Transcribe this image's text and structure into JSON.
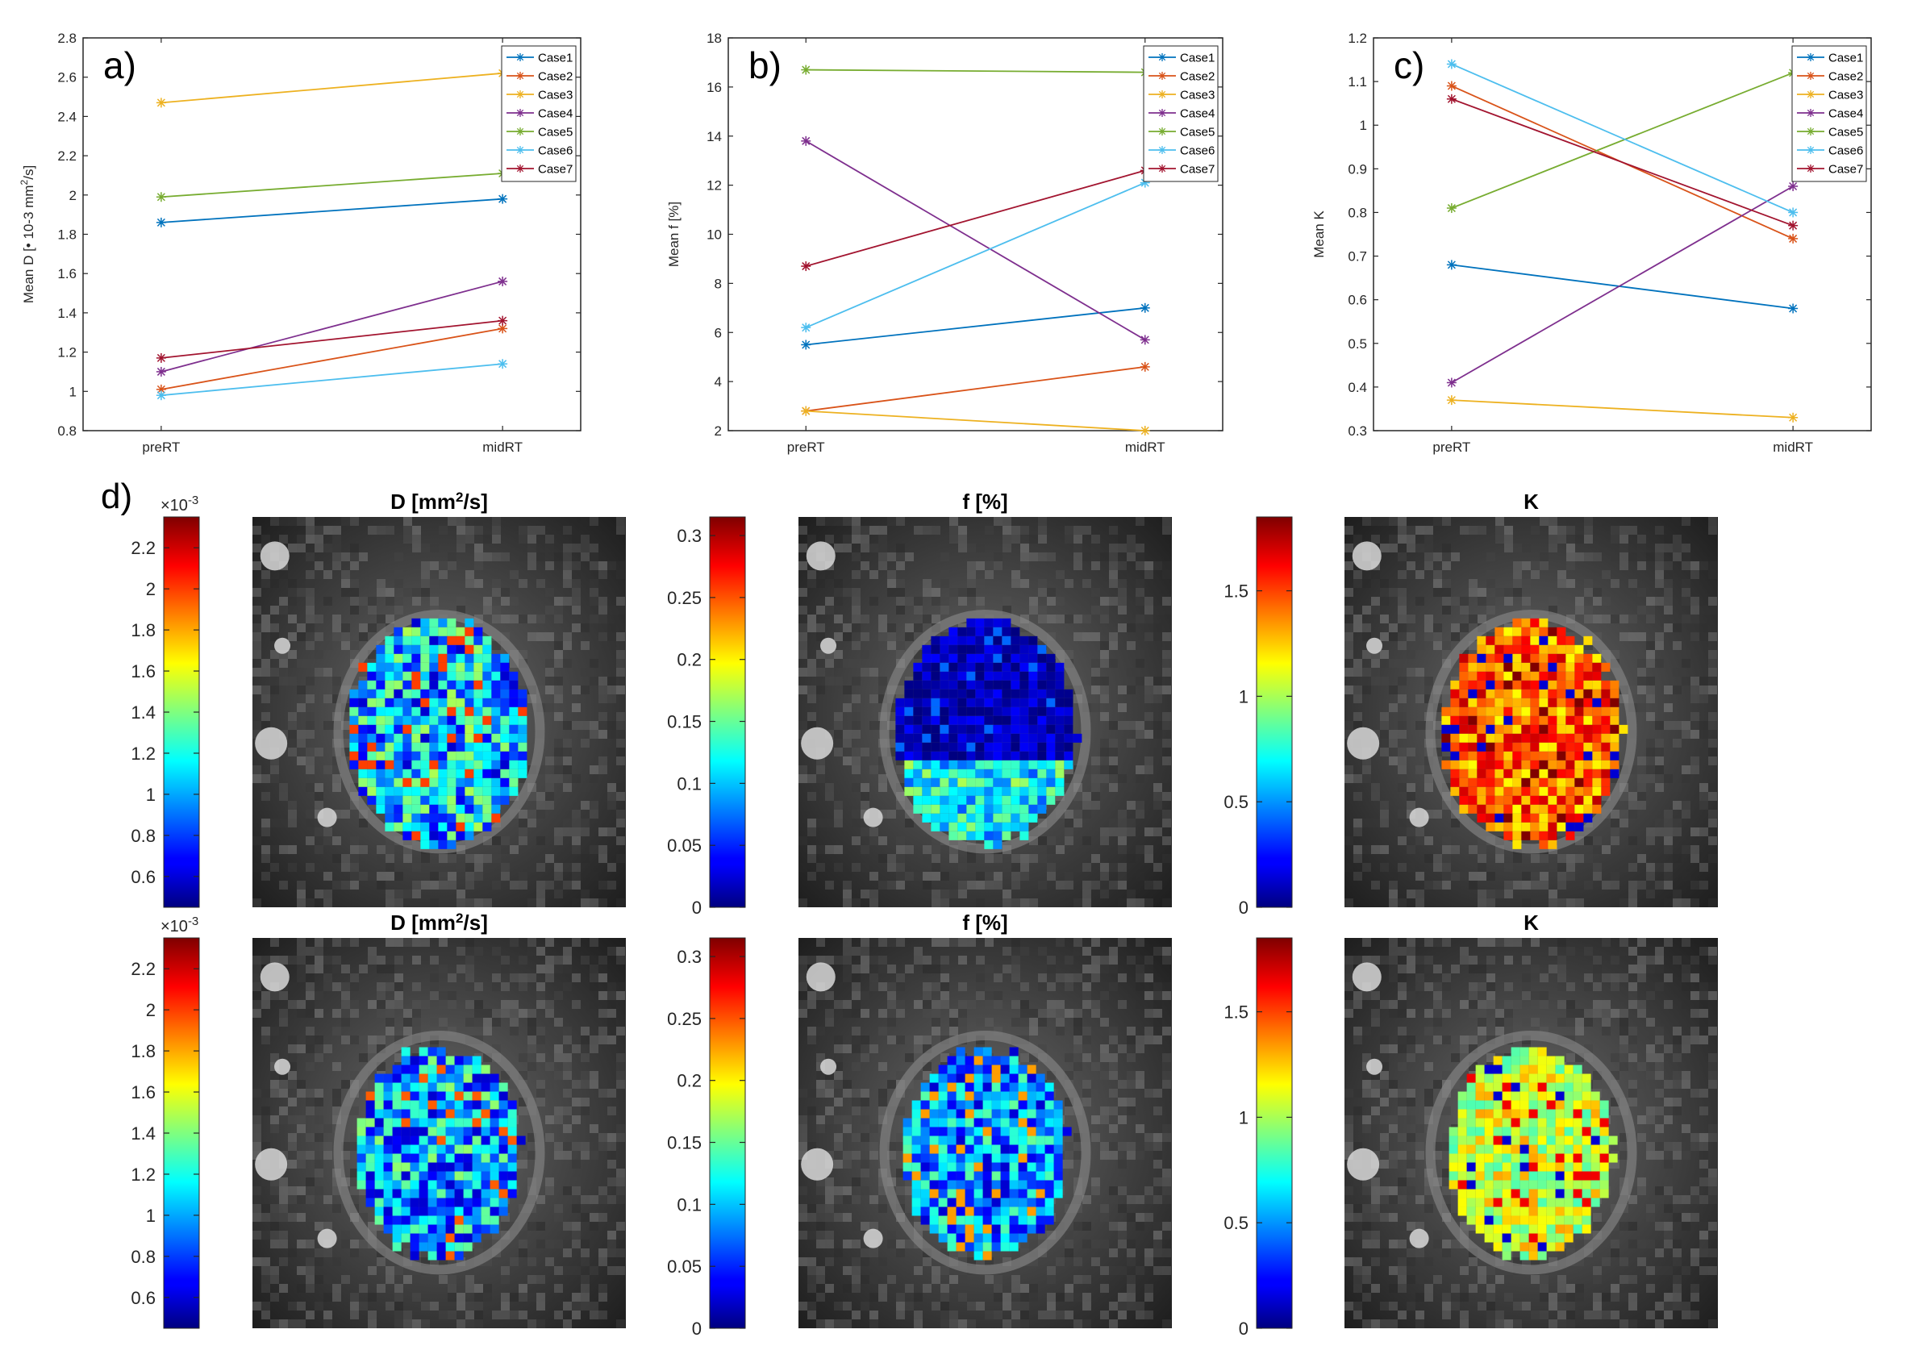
{
  "colors": {
    "Case1": "#0072BD",
    "Case2": "#D95319",
    "Case3": "#EDB120",
    "Case4": "#7E2F8E",
    "Case5": "#77AC30",
    "Case6": "#4DBEEE",
    "Case7": "#A2142F"
  },
  "chart_data": [
    {
      "type": "line",
      "panel_label": "a)",
      "ylabel": "Mean D [• 10-3 mm²/s]",
      "categories": [
        "preRT",
        "midRT"
      ],
      "ylim": [
        0.8,
        2.8
      ],
      "yticks": [
        "0.8",
        "1",
        "1.2",
        "1.4",
        "1.6",
        "1.8",
        "2",
        "2.2",
        "2.4",
        "2.6",
        "2.8"
      ],
      "series": [
        {
          "name": "Case1",
          "values": [
            1.86,
            1.98
          ]
        },
        {
          "name": "Case2",
          "values": [
            1.01,
            1.32
          ]
        },
        {
          "name": "Case3",
          "values": [
            2.47,
            2.62
          ]
        },
        {
          "name": "Case4",
          "values": [
            1.1,
            1.56
          ]
        },
        {
          "name": "Case5",
          "values": [
            1.99,
            2.11
          ]
        },
        {
          "name": "Case6",
          "values": [
            0.98,
            1.14
          ]
        },
        {
          "name": "Case7",
          "values": [
            1.17,
            1.36
          ]
        }
      ]
    },
    {
      "type": "line",
      "panel_label": "b)",
      "ylabel": "Mean f [%]",
      "categories": [
        "preRT",
        "midRT"
      ],
      "ylim": [
        2,
        18
      ],
      "yticks": [
        "2",
        "4",
        "6",
        "8",
        "10",
        "12",
        "14",
        "16",
        "18"
      ],
      "series": [
        {
          "name": "Case1",
          "values": [
            5.5,
            7.0
          ]
        },
        {
          "name": "Case2",
          "values": [
            2.8,
            4.6
          ]
        },
        {
          "name": "Case3",
          "values": [
            2.8,
            2.0
          ]
        },
        {
          "name": "Case4",
          "values": [
            13.8,
            5.7
          ]
        },
        {
          "name": "Case5",
          "values": [
            16.7,
            16.6
          ]
        },
        {
          "name": "Case6",
          "values": [
            6.2,
            12.1
          ]
        },
        {
          "name": "Case7",
          "values": [
            8.7,
            12.6
          ]
        }
      ]
    },
    {
      "type": "line",
      "panel_label": "c)",
      "ylabel": "Mean K",
      "categories": [
        "preRT",
        "midRT"
      ],
      "ylim": [
        0.3,
        1.2
      ],
      "yticks": [
        "0.3",
        "0.4",
        "0.5",
        "0.6",
        "0.7",
        "0.8",
        "0.9",
        "1",
        "1.1",
        "1.2"
      ],
      "series": [
        {
          "name": "Case1",
          "values": [
            0.68,
            0.58
          ]
        },
        {
          "name": "Case2",
          "values": [
            1.09,
            0.74
          ]
        },
        {
          "name": "Case3",
          "values": [
            0.37,
            0.33
          ]
        },
        {
          "name": "Case4",
          "values": [
            0.41,
            0.86
          ]
        },
        {
          "name": "Case5",
          "values": [
            0.81,
            1.12
          ]
        },
        {
          "name": "Case6",
          "values": [
            1.14,
            0.8
          ]
        },
        {
          "name": "Case7",
          "values": [
            1.06,
            0.77
          ]
        }
      ]
    }
  ],
  "maps": {
    "panel_label": "d)",
    "rows": [
      {
        "images": [
          {
            "title": "D [mm²/s]",
            "title_main": "D [mm",
            "title_sup": "2",
            "title_rest": "/s]",
            "colorbar_ticks": [
              "0.6",
              "0.8",
              "1",
              "1.2",
              "1.4",
              "1.6",
              "1.8",
              "2",
              "2.2"
            ],
            "colorbar_range": [
              0.45,
              2.35
            ],
            "colorbar_exponent": "×10",
            "colorbar_exponent_power": "-3"
          },
          {
            "title": "f [%]",
            "title_main": "f [%]",
            "title_sup": "",
            "title_rest": "",
            "colorbar_ticks": [
              "0",
              "0.05",
              "0.1",
              "0.15",
              "0.2",
              "0.25",
              "0.3"
            ],
            "colorbar_range": [
              0,
              0.315
            ],
            "colorbar_exponent": "",
            "colorbar_exponent_power": ""
          },
          {
            "title": "K",
            "title_main": "K",
            "title_sup": "",
            "title_rest": "",
            "colorbar_ticks": [
              "0",
              "0.5",
              "1",
              "1.5"
            ],
            "colorbar_range": [
              0,
              1.85
            ],
            "colorbar_exponent": "",
            "colorbar_exponent_power": ""
          }
        ]
      },
      {
        "images": [
          {
            "title": "D [mm²/s]",
            "title_main": "D [mm",
            "title_sup": "2",
            "title_rest": "/s]",
            "colorbar_ticks": [
              "0.6",
              "0.8",
              "1",
              "1.2",
              "1.4",
              "1.6",
              "1.8",
              "2",
              "2.2"
            ],
            "colorbar_range": [
              0.45,
              2.35
            ],
            "colorbar_exponent": "×10",
            "colorbar_exponent_power": "-3"
          },
          {
            "title": "f [%]",
            "title_main": "f [%]",
            "title_sup": "",
            "title_rest": "",
            "colorbar_ticks": [
              "0",
              "0.05",
              "0.1",
              "0.15",
              "0.2",
              "0.25",
              "0.3"
            ],
            "colorbar_range": [
              0,
              0.315
            ],
            "colorbar_exponent": "",
            "colorbar_exponent_power": ""
          },
          {
            "title": "K",
            "title_main": "K",
            "title_sup": "",
            "title_rest": "",
            "colorbar_ticks": [
              "0",
              "0.5",
              "1",
              "1.5"
            ],
            "colorbar_range": [
              0,
              1.85
            ],
            "colorbar_exponent": "",
            "colorbar_exponent_power": ""
          }
        ]
      }
    ]
  }
}
